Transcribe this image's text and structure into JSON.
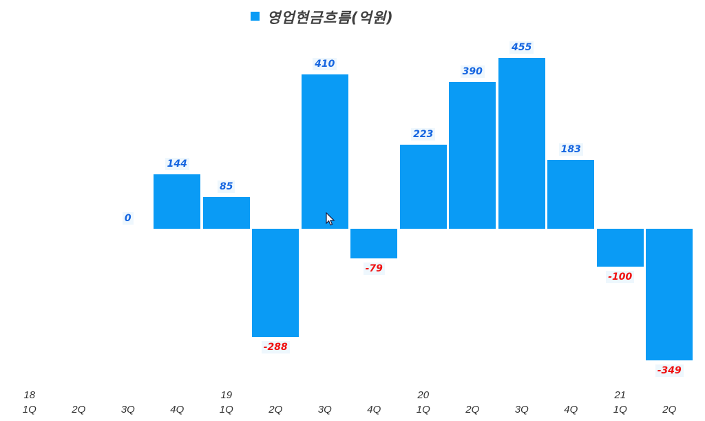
{
  "chart_data": {
    "type": "bar",
    "title": "",
    "xlabel": "",
    "ylabel": "",
    "legend": {
      "position": "top",
      "entries": [
        "영업현금흐름(억원)"
      ]
    },
    "grid": false,
    "ylim": [
      -400,
      500
    ],
    "categories": [
      "18 1Q",
      "2Q",
      "3Q",
      "4Q",
      "19 1Q",
      "2Q",
      "3Q",
      "4Q",
      "20 1Q",
      "2Q",
      "3Q",
      "4Q",
      "21 1Q",
      "2Q"
    ],
    "x_top_labels": [
      "18",
      "",
      "",
      "",
      "19",
      "",
      "",
      "",
      "20",
      "",
      "",
      "",
      "21",
      ""
    ],
    "x_bottom_labels": [
      "1Q",
      "2Q",
      "3Q",
      "4Q",
      "1Q",
      "2Q",
      "3Q",
      "4Q",
      "1Q",
      "2Q",
      "3Q",
      "4Q",
      "1Q",
      "2Q"
    ],
    "series": [
      {
        "name": "영업현금흐름(억원)",
        "color": "#0a9bf5",
        "values": [
          null,
          null,
          0,
          144,
          85,
          -288,
          410,
          -79,
          223,
          390,
          455,
          183,
          -100,
          -349
        ],
        "labels": [
          "",
          "",
          "0",
          "144",
          "85",
          "-288",
          "410",
          "-79",
          "223",
          "390",
          "455",
          "183",
          "-100",
          "-349"
        ]
      }
    ],
    "label_colors": {
      "positive": "#1565e0",
      "negative": "#f01010"
    }
  },
  "legend": {
    "label": "영업현금흐름(억원)"
  }
}
